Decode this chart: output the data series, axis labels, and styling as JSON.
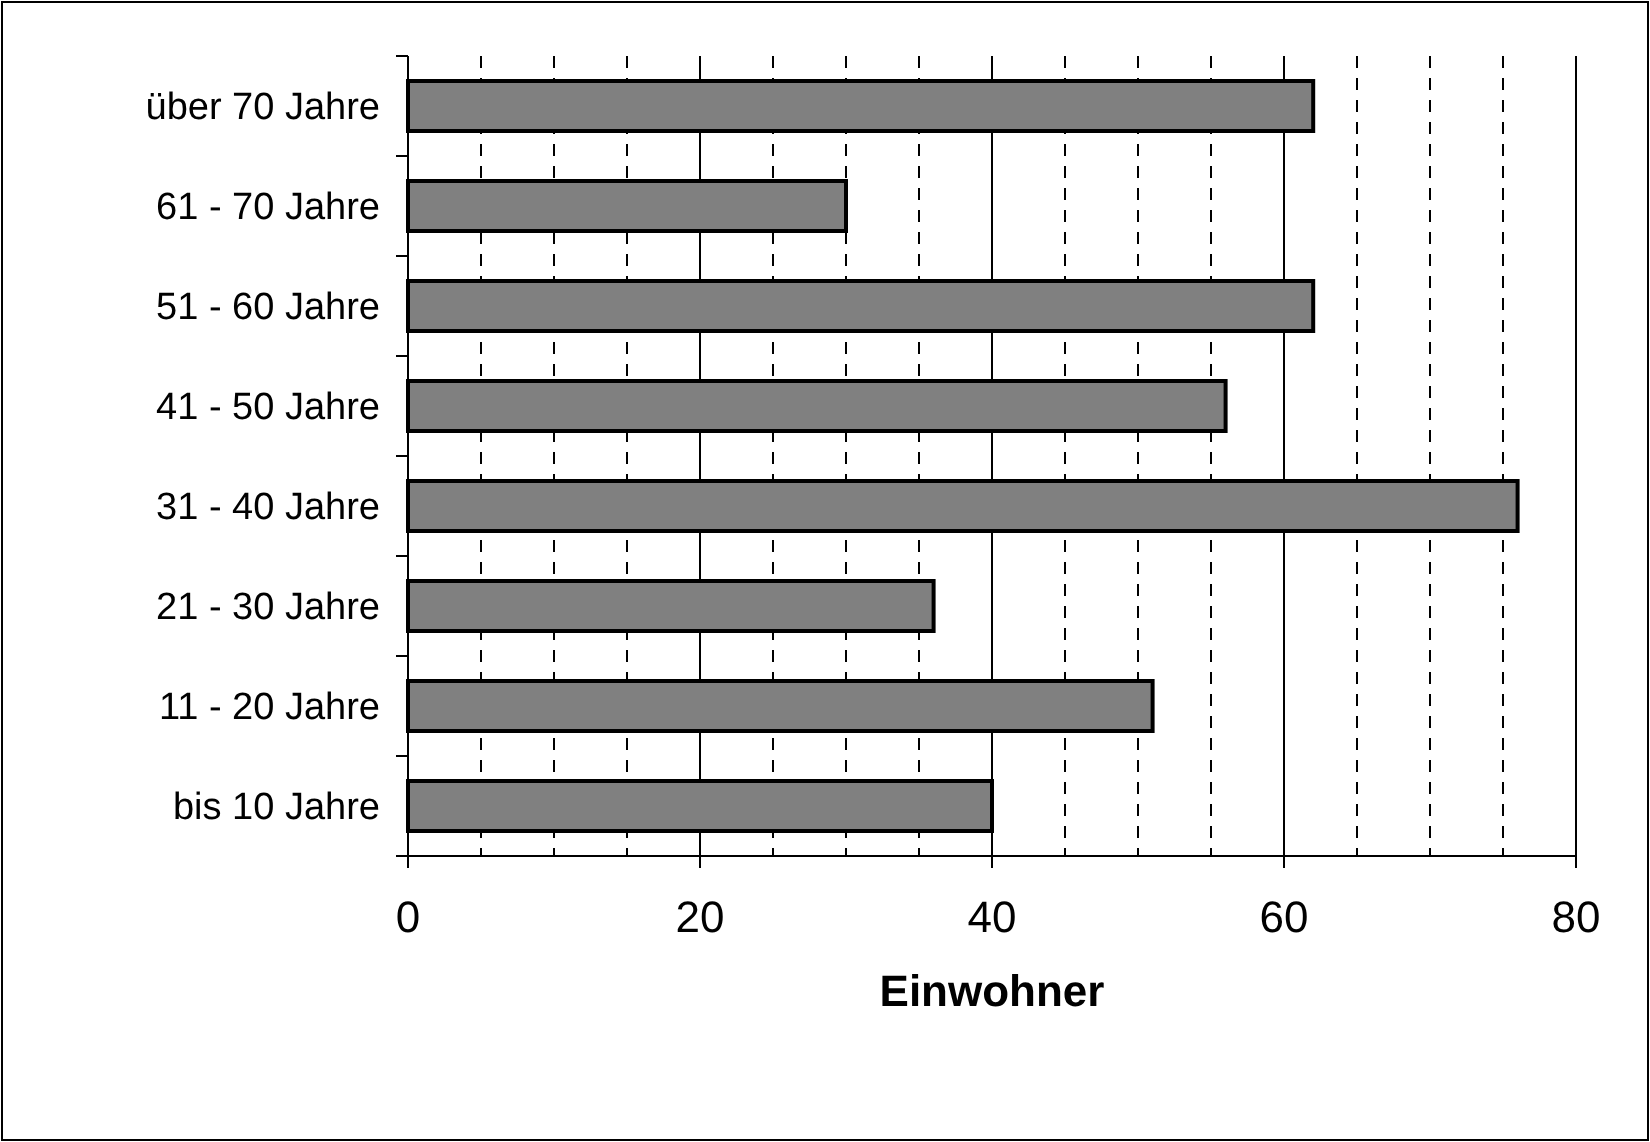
{
  "chart_data": {
    "type": "bar",
    "orientation": "horizontal",
    "xlabel": "Einwohner",
    "categories": [
      "über 70 Jahre",
      "61 - 70 Jahre",
      "51 - 60 Jahre",
      "41 - 50 Jahre",
      "31 - 40 Jahre",
      "21 - 30 Jahre",
      "11 - 20 Jahre",
      "bis 10 Jahre"
    ],
    "values": [
      62,
      30,
      62,
      56,
      76,
      36,
      51,
      40
    ],
    "color": "#808080",
    "xlim": [
      0,
      80
    ],
    "xticks": [
      0,
      {
        "value": 5,
        "label": null
      },
      {
        "value": 10,
        "label": null
      },
      {
        "value": 15,
        "label": null
      },
      20,
      {
        "value": 25,
        "label": null
      },
      {
        "value": 30,
        "label": null
      },
      {
        "value": 35,
        "label": null
      },
      40,
      {
        "value": 45,
        "label": null
      },
      {
        "value": 50,
        "label": null
      },
      {
        "value": 55,
        "label": null
      },
      60,
      {
        "value": 65,
        "label": null
      },
      {
        "value": 70,
        "label": null
      },
      {
        "value": 75,
        "label": null
      },
      80
    ],
    "grid": true
  }
}
